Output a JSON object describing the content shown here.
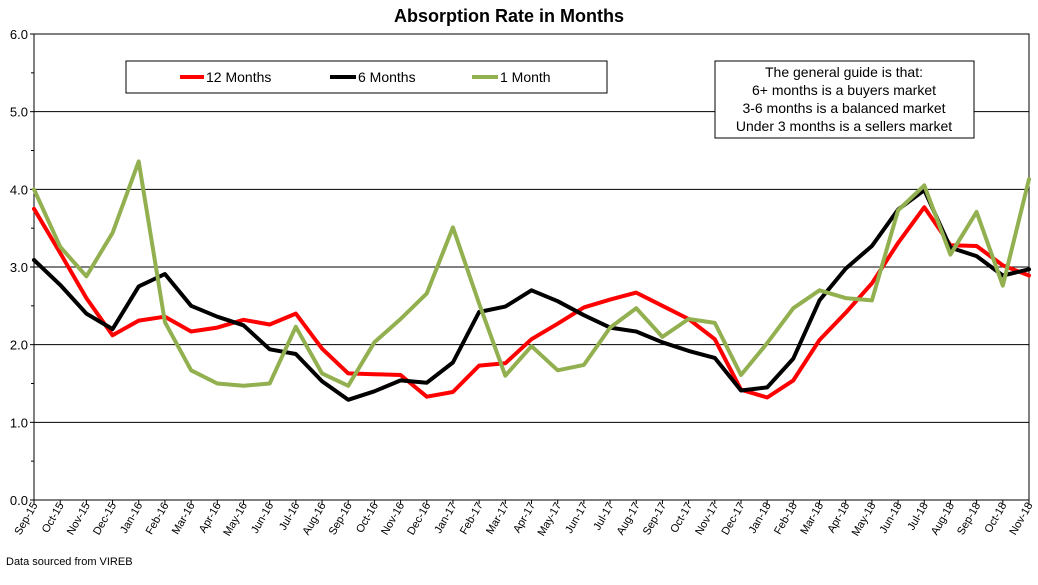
{
  "chart_data": {
    "type": "line",
    "title": "Absorption Rate in Months",
    "ylim": [
      0,
      6
    ],
    "y_ticks": [
      "0.0",
      "1.0",
      "2.0",
      "3.0",
      "4.0",
      "5.0",
      "6.0"
    ],
    "grid": "horizontal",
    "legend_placement": "top-left",
    "categories": [
      "Sep-15",
      "Oct-15",
      "Nov-15",
      "Dec-15",
      "Jan-16",
      "Feb-16",
      "Mar-16",
      "Apr-16",
      "May-16",
      "Jun-16",
      "Jul-16",
      "Aug-16",
      "Sep-16",
      "Oct-16",
      "Nov-16",
      "Dec-16",
      "Jan-17",
      "Feb-17",
      "Mar-17",
      "Apr-17",
      "May-17",
      "Jun-17",
      "Jul-17",
      "Aug-17",
      "Sep-17",
      "Oct-17",
      "Nov-17",
      "Dec-17",
      "Jan-18",
      "Feb-18",
      "Mar-18",
      "Apr-18",
      "May-18",
      "Jun-18",
      "Jul-18",
      "Aug-18",
      "Sep-18",
      "Oct-18",
      "Nov-18"
    ],
    "series": [
      {
        "name": "12 Months",
        "color": "#ff0000",
        "values": [
          3.75,
          3.18,
          2.6,
          2.12,
          2.31,
          2.36,
          2.17,
          2.22,
          2.32,
          2.26,
          2.4,
          1.95,
          1.63,
          1.62,
          1.61,
          1.33,
          1.39,
          1.73,
          1.76,
          2.07,
          2.27,
          2.48,
          2.58,
          2.67,
          2.5,
          2.33,
          2.07,
          1.42,
          1.32,
          1.54,
          2.06,
          2.41,
          2.79,
          3.31,
          3.77,
          3.28,
          3.27,
          3.02,
          2.89
        ]
      },
      {
        "name": "6 Months",
        "color": "#000000",
        "values": [
          3.09,
          2.77,
          2.4,
          2.2,
          2.75,
          2.91,
          2.5,
          2.36,
          2.25,
          1.94,
          1.88,
          1.53,
          1.29,
          1.4,
          1.54,
          1.51,
          1.77,
          2.42,
          2.49,
          2.7,
          2.56,
          2.38,
          2.22,
          2.17,
          2.03,
          1.92,
          1.83,
          1.41,
          1.45,
          1.82,
          2.57,
          2.98,
          3.27,
          3.74,
          3.99,
          3.25,
          3.14,
          2.89,
          2.97
        ]
      },
      {
        "name": "1 Month",
        "color": "#92b050",
        "values": [
          4.0,
          3.26,
          2.88,
          3.44,
          4.36,
          2.29,
          1.67,
          1.5,
          1.47,
          1.5,
          2.23,
          1.63,
          1.47,
          2.03,
          2.33,
          2.66,
          3.51,
          2.53,
          1.6,
          1.98,
          1.67,
          1.74,
          2.22,
          2.47,
          2.1,
          2.33,
          2.28,
          1.61,
          2.02,
          2.47,
          2.7,
          2.6,
          2.57,
          3.73,
          4.05,
          3.16,
          3.71,
          2.76,
          4.13
        ]
      }
    ],
    "annotation_lines": [
      "The general guide is that:",
      "6+ months is a buyers market",
      "3-6 months is a balanced market",
      "Under 3 months is a sellers market"
    ],
    "source_note": "Data sourced from VIREB"
  }
}
